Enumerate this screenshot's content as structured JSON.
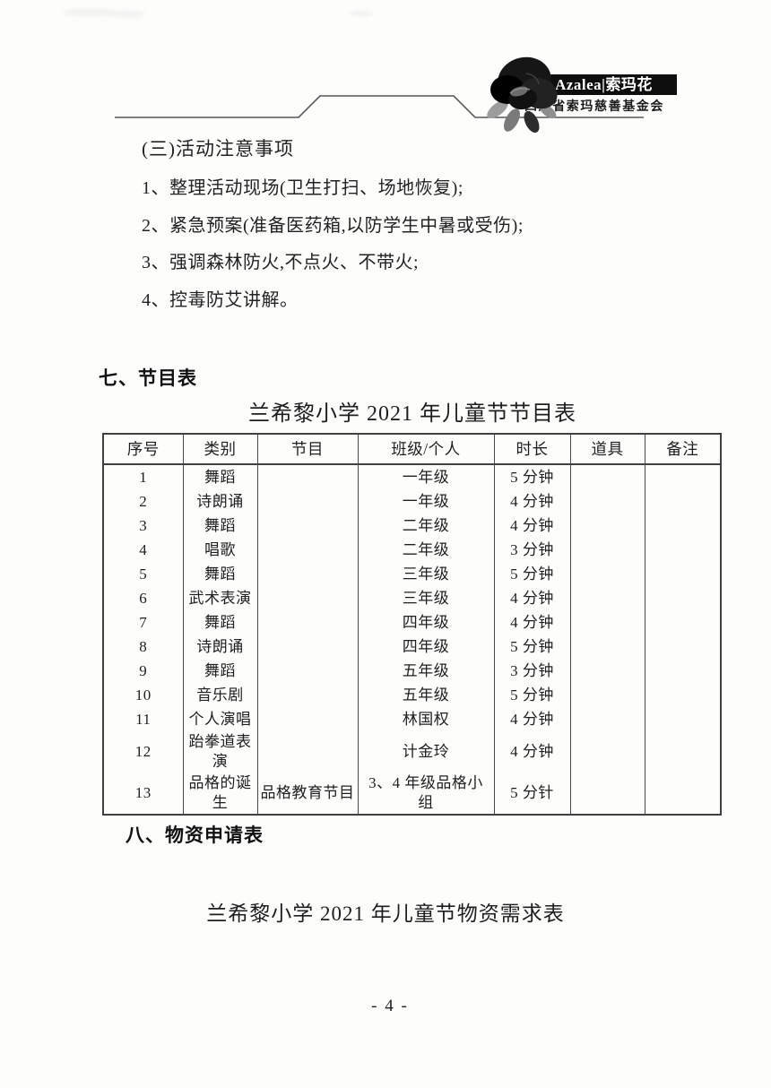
{
  "header": {
    "logo": {
      "flower_icon": "azalea-flower",
      "brand": "Azalea|索玛花",
      "org": "四川省索玛慈善基金会"
    }
  },
  "notes": {
    "heading": "(三)活动注意事项",
    "items": [
      "1、整理活动现场(卫生打扫、场地恢复);",
      "2、紧急预案(准备医药箱,以防学生中暑或受伤);",
      "3、强调森林防火,不点火、不带火;",
      "4、控毒防艾讲解。"
    ]
  },
  "program": {
    "heading": "七、节目表",
    "table_title": "兰希黎小学 2021 年儿童节节目表",
    "table": {
      "columns": [
        "序号",
        "类别",
        "节目",
        "班级/个人",
        "时长",
        "道具",
        "备注"
      ],
      "rows": [
        [
          "1",
          "舞蹈",
          "",
          "一年级",
          "5 分钟",
          "",
          ""
        ],
        [
          "2",
          "诗朗诵",
          "",
          "一年级",
          "4 分钟",
          "",
          ""
        ],
        [
          "3",
          "舞蹈",
          "",
          "二年级",
          "4 分钟",
          "",
          ""
        ],
        [
          "4",
          "唱歌",
          "",
          "二年级",
          "3 分钟",
          "",
          ""
        ],
        [
          "5",
          "舞蹈",
          "",
          "三年级",
          "5 分钟",
          "",
          ""
        ],
        [
          "6",
          "武术表演",
          "",
          "三年级",
          "4 分钟",
          "",
          ""
        ],
        [
          "7",
          "舞蹈",
          "",
          "四年级",
          "4 分钟",
          "",
          ""
        ],
        [
          "8",
          "诗朗诵",
          "",
          "四年级",
          "5 分钟",
          "",
          ""
        ],
        [
          "9",
          "舞蹈",
          "",
          "五年级",
          "3 分钟",
          "",
          ""
        ],
        [
          "10",
          "音乐剧",
          "",
          "五年级",
          "5 分钟",
          "",
          ""
        ],
        [
          "11",
          "个人演唱",
          "",
          "林国权",
          "4 分钟",
          "",
          ""
        ],
        [
          "12",
          "跆拳道表演",
          "",
          "计金玲",
          "4 分钟",
          "",
          ""
        ],
        [
          "13",
          "品格的诞生",
          "品格教育节目",
          "3、4 年级品格小组",
          "5 分针",
          "",
          ""
        ]
      ]
    }
  },
  "supplies": {
    "heading": "八、物资申请表",
    "table_title": "兰希黎小学 2021 年儿童节物资需求表"
  },
  "page": {
    "number_label": "- 4 -"
  }
}
